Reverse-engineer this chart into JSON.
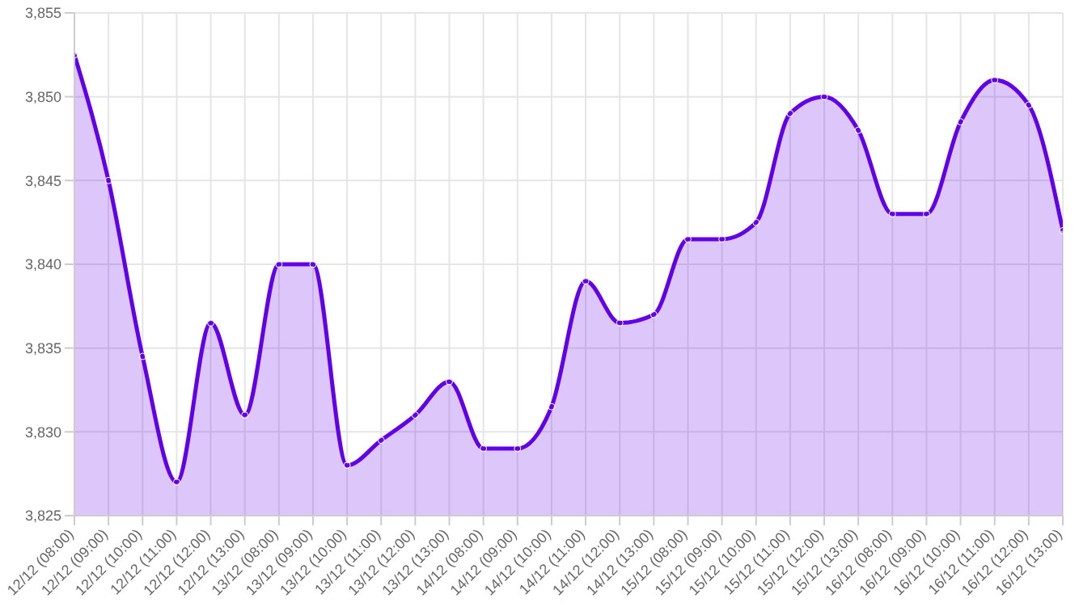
{
  "chart_data": {
    "type": "area",
    "categories": [
      "12/12 (08:00)",
      "12/12 (09:00)",
      "12/12 (10:00)",
      "12/12 (11:00)",
      "12/12 (12:00)",
      "12/12 (13:00)",
      "13/12 (08:00)",
      "13/12 (09:00)",
      "13/12 (10:00)",
      "13/12 (11:00)",
      "13/12 (12:00)",
      "13/12 (13:00)",
      "14/12 (08:00)",
      "14/12 (09:00)",
      "14/12 (10:00)",
      "14/12 (11:00)",
      "14/12 (12:00)",
      "14/12 (13:00)",
      "15/12 (08:00)",
      "15/12 (09:00)",
      "15/12 (10:00)",
      "15/12 (11:00)",
      "15/12 (12:00)",
      "15/12 (13:00)",
      "16/12 (08:00)",
      "16/12 (09:00)",
      "16/12 (10:00)",
      "16/12 (11:00)",
      "16/12 (12:00)",
      "16/12 (13:00)"
    ],
    "series": [
      {
        "color": "#6200ea",
        "values": [
          3852.5,
          3845,
          3834.5,
          3827,
          3836.5,
          3831,
          3840,
          3840,
          3828,
          3829.5,
          3831,
          3833,
          3829,
          3829,
          3831.5,
          3839,
          3836.5,
          3837,
          3841.5,
          3841.5,
          3842.5,
          3849,
          3850,
          3848,
          3843,
          3843,
          3848.5,
          3851,
          3849.5,
          3842
        ]
      }
    ],
    "ylim": [
      3825,
      3855
    ],
    "yticks": [
      {
        "value": 3825,
        "label": "3,825"
      },
      {
        "value": 3830,
        "label": "3,830"
      },
      {
        "value": 3835,
        "label": "3,835"
      },
      {
        "value": 3840,
        "label": "3,840"
      },
      {
        "value": 3845,
        "label": "3,845"
      },
      {
        "value": 3850,
        "label": "3,850"
      },
      {
        "value": 3855,
        "label": "3,855"
      }
    ],
    "grid": true,
    "marker": "circle",
    "line_style": "solid",
    "legend": false
  }
}
